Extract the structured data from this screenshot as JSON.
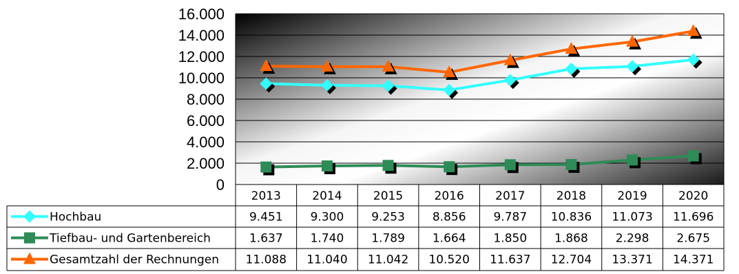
{
  "chart_data": {
    "type": "line",
    "categories": [
      "2013",
      "2014",
      "2015",
      "2016",
      "2017",
      "2018",
      "2019",
      "2020"
    ],
    "ylim": [
      0,
      16000
    ],
    "yticks": [
      {
        "value": 0,
        "label": "0"
      },
      {
        "value": 2000,
        "label": "2.000"
      },
      {
        "value": 4000,
        "label": "4.000"
      },
      {
        "value": 6000,
        "label": "6.000"
      },
      {
        "value": 8000,
        "label": "8.000"
      },
      {
        "value": 10000,
        "label": "10.000"
      },
      {
        "value": 12000,
        "label": "12.000"
      },
      {
        "value": 14000,
        "label": "14.000"
      },
      {
        "value": 16000,
        "label": "16.000"
      }
    ],
    "grid": true,
    "legend": "data table",
    "series": [
      {
        "name": "Hochbau",
        "color": "#33FFFF",
        "marker": "diamond",
        "values": [
          9451,
          9300,
          9253,
          8856,
          9787,
          10836,
          11073,
          11696
        ],
        "labels": [
          "9.451",
          "9.300",
          "9.253",
          "8.856",
          "9.787",
          "10.836",
          "11.073",
          "11.696"
        ]
      },
      {
        "name": "Tiefbau- und Gartenbereich",
        "color": "#2E8B57",
        "marker": "square",
        "values": [
          1637,
          1740,
          1789,
          1664,
          1850,
          1868,
          2298,
          2675
        ],
        "labels": [
          "1.637",
          "1.740",
          "1.789",
          "1.664",
          "1.850",
          "1.868",
          "2.298",
          "2.675"
        ]
      },
      {
        "name": "Gesamtzahl der Rechnungen",
        "color": "#FF6600",
        "marker": "triangle",
        "values": [
          11088,
          11040,
          11042,
          10520,
          11637,
          12704,
          13371,
          14371
        ],
        "labels": [
          "11.088",
          "11.040",
          "11.042",
          "10.520",
          "11.637",
          "12.704",
          "13.371",
          "14.371"
        ]
      }
    ]
  }
}
